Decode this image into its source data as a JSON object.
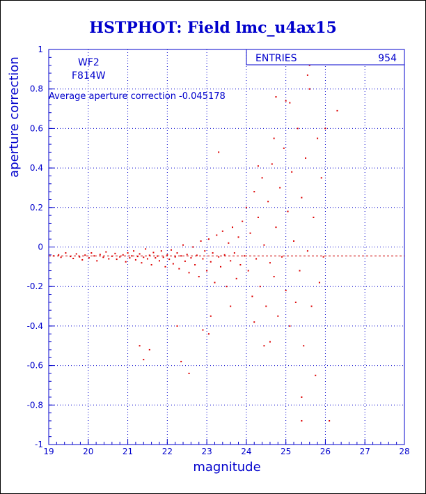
{
  "chart_data": {
    "type": "scatter",
    "title": "HSTPHOT: Field lmc_u4ax15",
    "xlabel": "magnitude",
    "ylabel": "aperture correction",
    "xlim": [
      19,
      28
    ],
    "ylim": [
      -1,
      1
    ],
    "xticks": [
      "19",
      "20",
      "21",
      "22",
      "23",
      "24",
      "25",
      "26",
      "27",
      "28"
    ],
    "yticks": [
      "-1",
      "-0.8",
      "-0.6",
      "-0.4",
      "-0.2",
      "0",
      "0.2",
      "0.4",
      "0.6",
      "0.8",
      "1"
    ],
    "grid": true,
    "annotations": {
      "camera": "WF2",
      "filter": "F814W",
      "average_text": "Average aperture correction  -0.045178",
      "average_value": -0.045178,
      "entries_label": "ENTRIES",
      "entries_value": "954"
    },
    "reference_line": {
      "y": -0.045178,
      "style": "dashed"
    },
    "points": [
      [
        19.12,
        -0.045
      ],
      [
        19.25,
        -0.04
      ],
      [
        19.31,
        -0.052
      ],
      [
        19.43,
        -0.03
      ],
      [
        19.55,
        -0.048
      ],
      [
        19.62,
        -0.058
      ],
      [
        19.7,
        -0.035
      ],
      [
        19.78,
        -0.05
      ],
      [
        19.85,
        -0.065
      ],
      [
        19.92,
        -0.041
      ],
      [
        20.02,
        -0.055
      ],
      [
        20.08,
        -0.03
      ],
      [
        20.15,
        -0.045
      ],
      [
        20.22,
        -0.07
      ],
      [
        20.3,
        -0.038
      ],
      [
        20.38,
        -0.052
      ],
      [
        20.45,
        -0.025
      ],
      [
        20.52,
        -0.06
      ],
      [
        20.6,
        -0.047
      ],
      [
        20.68,
        -0.033
      ],
      [
        20.72,
        -0.062
      ],
      [
        20.8,
        -0.05
      ],
      [
        20.88,
        -0.04
      ],
      [
        20.95,
        -0.075
      ],
      [
        21.0,
        -0.03
      ],
      [
        21.05,
        -0.055
      ],
      [
        21.1,
        -0.045
      ],
      [
        21.15,
        -0.02
      ],
      [
        21.2,
        -0.065
      ],
      [
        21.25,
        -0.048
      ],
      [
        21.3,
        -0.035
      ],
      [
        21.35,
        -0.08
      ],
      [
        21.4,
        -0.052
      ],
      [
        21.45,
        -0.01
      ],
      [
        21.5,
        -0.06
      ],
      [
        21.55,
        -0.042
      ],
      [
        21.6,
        -0.09
      ],
      [
        21.65,
        -0.028
      ],
      [
        21.7,
        -0.055
      ],
      [
        21.75,
        -0.046
      ],
      [
        21.8,
        -0.07
      ],
      [
        21.85,
        -0.02
      ],
      [
        21.9,
        -0.052
      ],
      [
        21.95,
        -0.1
      ],
      [
        22.0,
        -0.04
      ],
      [
        22.05,
        -0.062
      ],
      [
        22.1,
        -0.015
      ],
      [
        22.15,
        -0.085
      ],
      [
        22.2,
        -0.05
      ],
      [
        22.25,
        -0.03
      ],
      [
        22.3,
        -0.11
      ],
      [
        22.35,
        -0.045
      ],
      [
        22.4,
        0.01
      ],
      [
        22.45,
        -0.072
      ],
      [
        22.5,
        -0.038
      ],
      [
        22.55,
        -0.13
      ],
      [
        22.6,
        -0.055
      ],
      [
        22.65,
        0.0
      ],
      [
        22.7,
        -0.09
      ],
      [
        22.75,
        -0.042
      ],
      [
        22.8,
        -0.15
      ],
      [
        22.85,
        0.03
      ],
      [
        22.9,
        -0.06
      ],
      [
        22.95,
        -0.02
      ],
      [
        23.0,
        -0.12
      ],
      [
        23.05,
        0.04
      ],
      [
        23.1,
        -0.075
      ],
      [
        23.15,
        -0.03
      ],
      [
        23.2,
        -0.18
      ],
      [
        23.25,
        0.06
      ],
      [
        23.3,
        -0.05
      ],
      [
        23.35,
        -0.1
      ],
      [
        23.4,
        0.08
      ],
      [
        23.45,
        -0.04
      ],
      [
        23.5,
        -0.2
      ],
      [
        23.55,
        0.02
      ],
      [
        23.6,
        -0.07
      ],
      [
        23.65,
        0.1
      ],
      [
        23.7,
        -0.03
      ],
      [
        23.75,
        -0.16
      ],
      [
        23.8,
        0.05
      ],
      [
        23.85,
        -0.09
      ],
      [
        23.9,
        0.13
      ],
      [
        23.95,
        -0.045
      ],
      [
        24.0,
        0.2
      ],
      [
        24.05,
        -0.12
      ],
      [
        24.1,
        0.07
      ],
      [
        24.15,
        -0.25
      ],
      [
        24.2,
        0.28
      ],
      [
        24.25,
        -0.06
      ],
      [
        24.3,
        0.15
      ],
      [
        24.35,
        -0.2
      ],
      [
        24.4,
        0.35
      ],
      [
        24.45,
        0.01
      ],
      [
        24.5,
        -0.3
      ],
      [
        24.55,
        0.23
      ],
      [
        24.6,
        -0.08
      ],
      [
        24.65,
        0.42
      ],
      [
        24.7,
        -0.15
      ],
      [
        24.75,
        0.1
      ],
      [
        24.8,
        -0.35
      ],
      [
        24.85,
        0.3
      ],
      [
        24.9,
        -0.05
      ],
      [
        24.95,
        0.5
      ],
      [
        25.0,
        -0.22
      ],
      [
        25.05,
        0.18
      ],
      [
        25.1,
        -0.4
      ],
      [
        25.15,
        0.38
      ],
      [
        25.2,
        0.03
      ],
      [
        25.25,
        -0.28
      ],
      [
        25.3,
        0.6
      ],
      [
        25.35,
        -0.12
      ],
      [
        25.4,
        0.25
      ],
      [
        25.45,
        -0.5
      ],
      [
        25.5,
        0.45
      ],
      [
        25.55,
        -0.02
      ],
      [
        25.6,
        0.8
      ],
      [
        25.65,
        -0.3
      ],
      [
        25.7,
        0.15
      ],
      [
        25.75,
        -0.65
      ],
      [
        25.8,
        0.55
      ],
      [
        25.85,
        -0.18
      ],
      [
        25.9,
        0.35
      ],
      [
        25.95,
        -0.05
      ],
      [
        26.0,
        0.6
      ],
      [
        26.1,
        -0.88
      ],
      [
        26.3,
        0.69
      ],
      [
        25.4,
        -0.76
      ],
      [
        25.6,
        0.92
      ],
      [
        25.55,
        0.87
      ],
      [
        21.3,
        -0.5
      ],
      [
        21.55,
        -0.52
      ],
      [
        22.35,
        -0.58
      ],
      [
        22.55,
        -0.64
      ],
      [
        23.3,
        0.48
      ],
      [
        22.9,
        -0.42
      ],
      [
        23.05,
        -0.44
      ],
      [
        21.4,
        -0.57
      ],
      [
        22.25,
        -0.4
      ],
      [
        24.75,
        0.76
      ],
      [
        25.1,
        0.73
      ],
      [
        25.0,
        0.74
      ],
      [
        25.4,
        -0.88
      ],
      [
        24.45,
        -0.5
      ],
      [
        24.6,
        -0.48
      ],
      [
        23.6,
        -0.3
      ],
      [
        23.1,
        -0.35
      ],
      [
        24.2,
        -0.38
      ],
      [
        24.3,
        0.41
      ],
      [
        24.7,
        0.55
      ]
    ]
  }
}
